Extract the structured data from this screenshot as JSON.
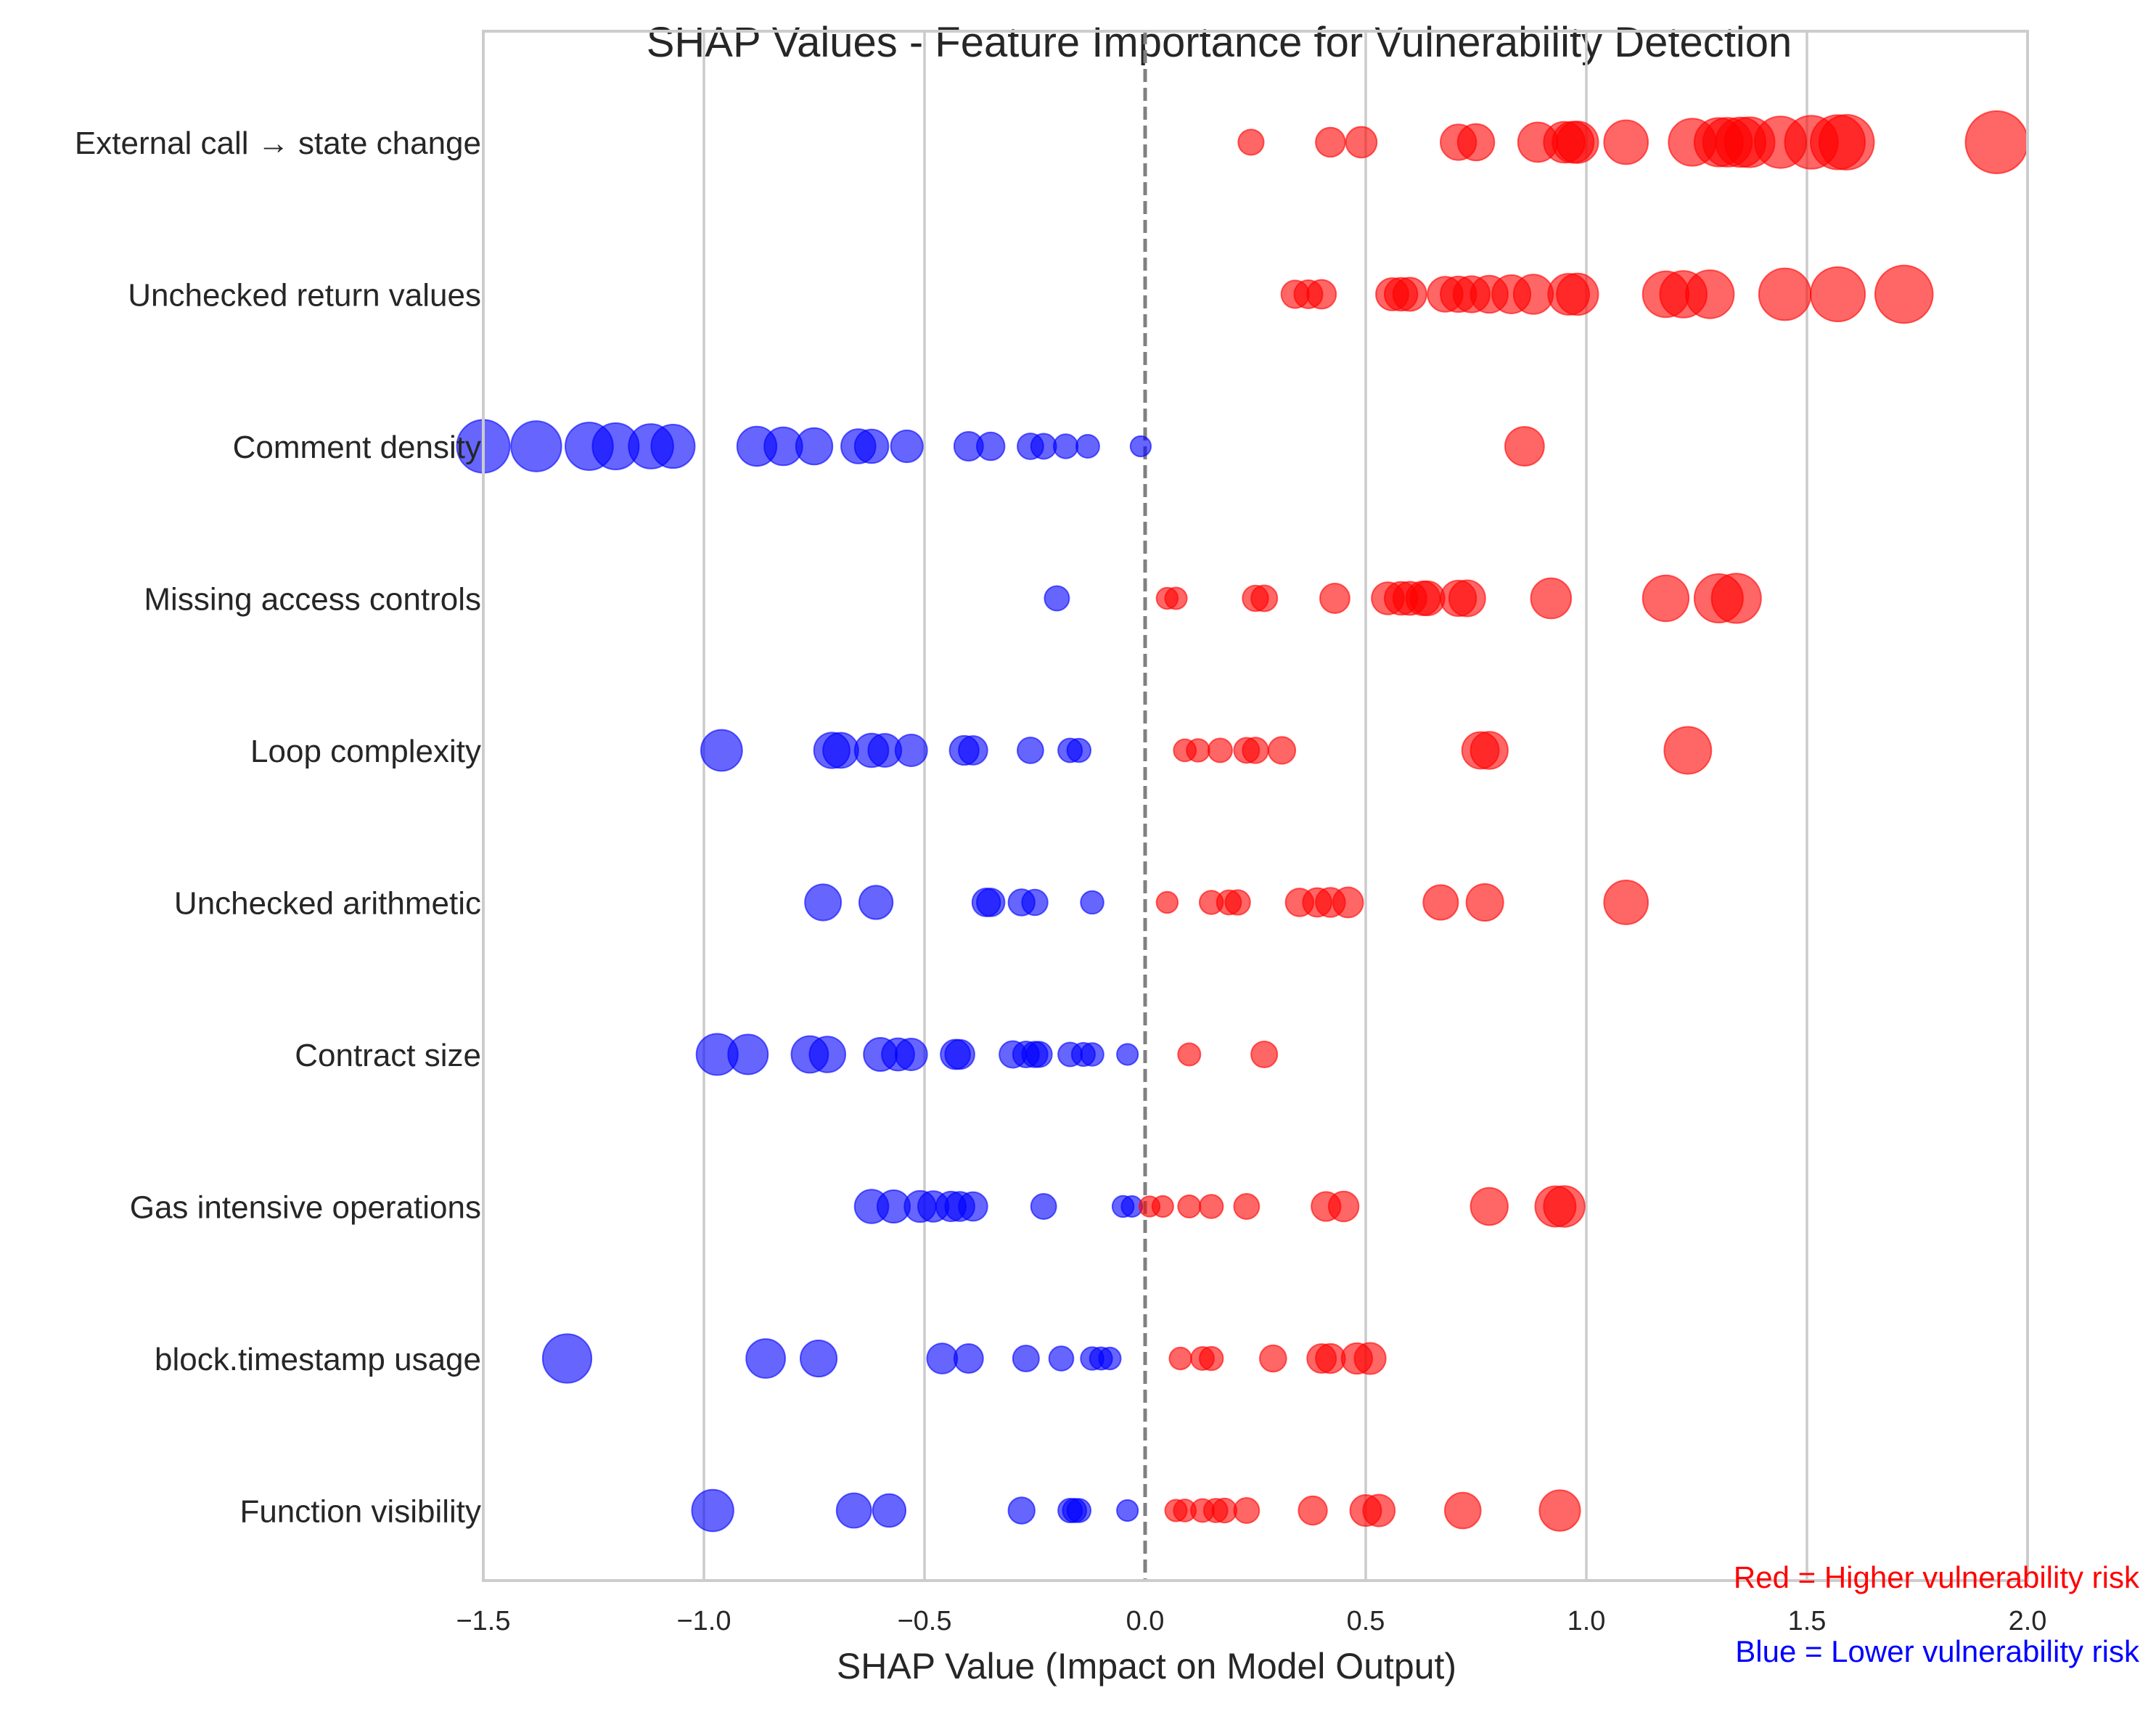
{
  "chart_data": {
    "type": "scatter",
    "title": "SHAP Values - Feature Importance for Vulnerability Detection",
    "xlabel": "SHAP Value (Impact on Model Output)",
    "ylabel": "",
    "xlim": [
      -1.5,
      2.0
    ],
    "xticks": [
      -1.5,
      -1.0,
      -0.5,
      0.0,
      0.5,
      1.0,
      1.5,
      2.0
    ],
    "xtick_labels": [
      "−1.5",
      "−1.0",
      "−0.5",
      "0.0",
      "0.5",
      "1.0",
      "1.5",
      "2.0"
    ],
    "grid": "vertical",
    "zero_line": "dashed",
    "colors": {
      "positive": "#ff0000",
      "negative": "#0000ff",
      "grid": "#cccccc",
      "zero": "#808080"
    },
    "annotations": {
      "red_note": "Red = Higher vulnerability risk",
      "blue_note": "Blue = Lower vulnerability risk"
    },
    "features": [
      {
        "name": "External call → state change",
        "values": [
          0.24,
          0.42,
          0.49,
          0.71,
          0.75,
          0.89,
          0.95,
          0.97,
          0.98,
          1.09,
          1.24,
          1.3,
          1.32,
          1.35,
          1.37,
          1.44,
          1.51,
          1.57,
          1.59,
          1.93
        ]
      },
      {
        "name": "Unchecked return values",
        "values": [
          0.34,
          0.37,
          0.4,
          0.56,
          0.58,
          0.6,
          0.68,
          0.71,
          0.74,
          0.78,
          0.83,
          0.88,
          0.96,
          0.98,
          1.18,
          1.22,
          1.28,
          1.45,
          1.57,
          1.72
        ]
      },
      {
        "name": "Comment density",
        "values": [
          -1.5,
          -1.38,
          -1.26,
          -1.2,
          -1.12,
          -1.07,
          -0.88,
          -0.82,
          -0.75,
          -0.65,
          -0.62,
          -0.54,
          -0.4,
          -0.35,
          -0.26,
          -0.23,
          -0.18,
          -0.13,
          -0.01,
          0.86
        ]
      },
      {
        "name": "Missing access controls",
        "values": [
          -0.2,
          0.05,
          0.07,
          0.25,
          0.27,
          0.43,
          0.55,
          0.58,
          0.6,
          0.63,
          0.64,
          0.71,
          0.73,
          0.92,
          1.18,
          1.3,
          1.34
        ]
      },
      {
        "name": "Loop complexity",
        "values": [
          -0.96,
          -0.71,
          -0.69,
          -0.62,
          -0.59,
          -0.53,
          -0.41,
          -0.39,
          -0.26,
          -0.17,
          -0.15,
          0.09,
          0.12,
          0.17,
          0.23,
          0.25,
          0.31,
          0.76,
          0.78,
          1.23
        ]
      },
      {
        "name": "Unchecked arithmetic",
        "values": [
          -0.73,
          -0.61,
          -0.36,
          -0.35,
          -0.28,
          -0.25,
          -0.12,
          0.05,
          0.15,
          0.19,
          0.21,
          0.35,
          0.39,
          0.42,
          0.46,
          0.67,
          0.77,
          1.09
        ]
      },
      {
        "name": "Contract size",
        "values": [
          -0.97,
          -0.9,
          -0.76,
          -0.72,
          -0.6,
          -0.56,
          -0.53,
          -0.43,
          -0.42,
          -0.3,
          -0.27,
          -0.25,
          -0.24,
          -0.17,
          -0.14,
          -0.12,
          -0.04,
          0.1,
          0.27
        ]
      },
      {
        "name": "Gas intensive operations",
        "values": [
          -0.62,
          -0.57,
          -0.51,
          -0.48,
          -0.44,
          -0.42,
          -0.39,
          -0.23,
          -0.05,
          -0.03,
          0.01,
          0.04,
          0.1,
          0.15,
          0.23,
          0.41,
          0.45,
          0.78,
          0.93,
          0.95
        ]
      },
      {
        "name": "block.timestamp usage",
        "values": [
          -1.31,
          -0.86,
          -0.74,
          -0.46,
          -0.4,
          -0.27,
          -0.19,
          -0.12,
          -0.1,
          -0.08,
          0.08,
          0.13,
          0.15,
          0.29,
          0.4,
          0.42,
          0.48,
          0.51
        ]
      },
      {
        "name": "Function visibility",
        "values": [
          -0.98,
          -0.66,
          -0.58,
          -0.28,
          -0.17,
          -0.16,
          -0.15,
          -0.04,
          0.07,
          0.09,
          0.13,
          0.16,
          0.18,
          0.23,
          0.38,
          0.5,
          0.53,
          0.72,
          0.94
        ]
      }
    ]
  }
}
